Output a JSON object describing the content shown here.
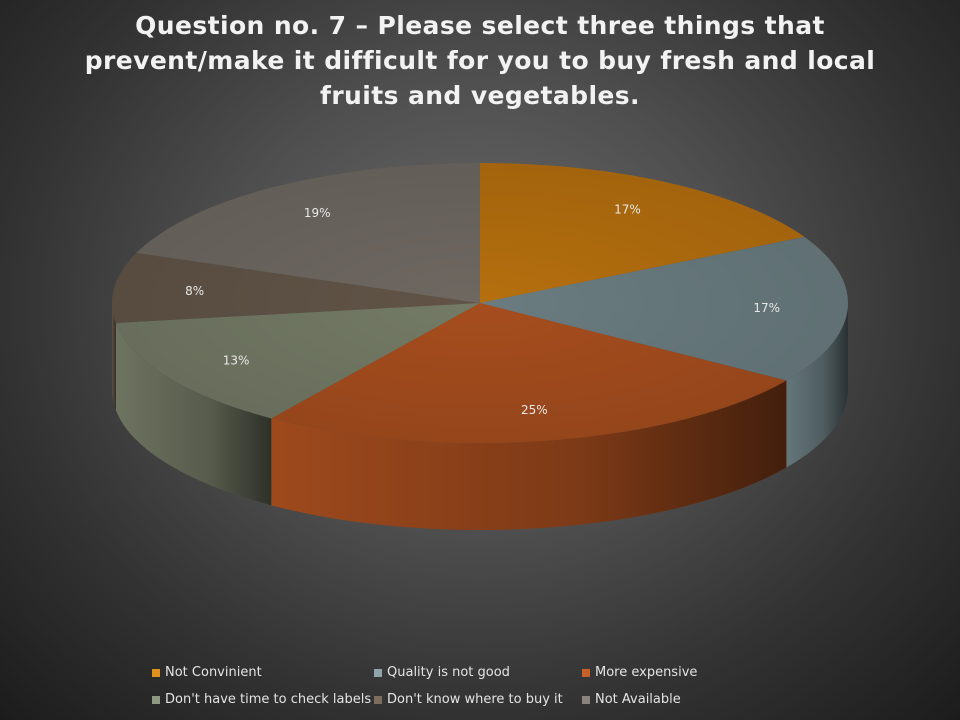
{
  "title": "Question no. 7 – Please select three things that prevent/make it difficult for you to buy fresh and local fruits and vegetables.",
  "chart_data": {
    "type": "pie",
    "style": "3d",
    "title": "Question no. 7 – Please select three things that prevent/make it difficult for you to buy fresh and local fruits and vegetables.",
    "categories": [
      "Not Convinient",
      "Quality is not good",
      "More expensive",
      "Don't have time to check labels",
      "Don't know where to buy it",
      "Not Available"
    ],
    "values": [
      17,
      17,
      25,
      13,
      8,
      19
    ],
    "labels": [
      "17%",
      "17%",
      "25%",
      "13%",
      "8%",
      "19%"
    ],
    "colors": [
      "#b56f0e",
      "#6a7c80",
      "#a64d1e",
      "#737a65",
      "#615447",
      "#6e6861"
    ],
    "legend": "bottom"
  }
}
